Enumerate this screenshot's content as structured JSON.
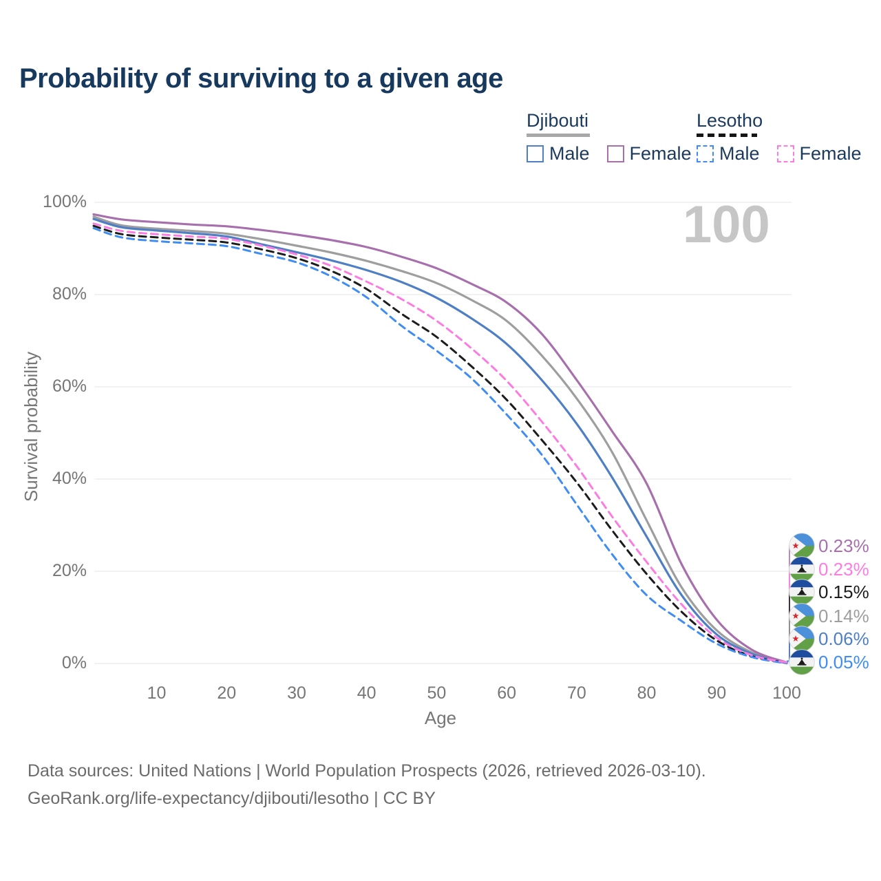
{
  "title": "Probability of surviving to a given age",
  "legend": {
    "groups": [
      {
        "title": "Djibouti",
        "line_style": "solid",
        "underline_color": "#a8a8a8",
        "items": [
          {
            "label": "Male",
            "color": "#4e7fc4"
          },
          {
            "label": "Female",
            "color": "#a770ad"
          }
        ]
      },
      {
        "title": "Lesotho",
        "line_style": "dashed",
        "underline_color": "#161616",
        "items": [
          {
            "label": "Male",
            "color": "#3f8df2"
          },
          {
            "label": "Female",
            "color": "#fb7de2"
          }
        ]
      }
    ]
  },
  "chart_data": {
    "type": "line",
    "title": "Probability of surviving to a given age",
    "xlabel": "Age",
    "ylabel": "Survival probability",
    "xlim": [
      1,
      100
    ],
    "ylim": [
      0,
      100
    ],
    "grid": true,
    "legend_position": "top-right",
    "age_indicator": "100",
    "x": [
      1,
      5,
      10,
      15,
      20,
      25,
      30,
      35,
      40,
      45,
      50,
      55,
      60,
      65,
      70,
      75,
      80,
      85,
      90,
      95,
      100
    ],
    "x_ticks": [
      {
        "v": 10,
        "label": "10"
      },
      {
        "v": 20,
        "label": "20"
      },
      {
        "v": 30,
        "label": "30"
      },
      {
        "v": 40,
        "label": "40"
      },
      {
        "v": 50,
        "label": "50"
      },
      {
        "v": 60,
        "label": "60"
      },
      {
        "v": 70,
        "label": "70"
      },
      {
        "v": 80,
        "label": "80"
      },
      {
        "v": 90,
        "label": "90"
      },
      {
        "v": 100,
        "label": "100"
      }
    ],
    "y_ticks": [
      {
        "v": 0,
        "label": "0%"
      },
      {
        "v": 20,
        "label": "20%"
      },
      {
        "v": 40,
        "label": "40%"
      },
      {
        "v": 60,
        "label": "60%"
      },
      {
        "v": 80,
        "label": "80%"
      },
      {
        "v": 100,
        "label": "100%"
      }
    ],
    "series": [
      {
        "name": "Djibouti Male",
        "country": "djibouti",
        "sex": "male",
        "color": "#4e7fc4",
        "dash": false,
        "values": [
          96.4,
          94.6,
          93.9,
          93.3,
          92.6,
          90.9,
          89.2,
          87.4,
          85.3,
          82.7,
          79.3,
          74.8,
          69.3,
          61.5,
          52.0,
          40.5,
          27.5,
          14.8,
          6.3,
          2.1,
          0.06
        ]
      },
      {
        "name": "Djibouti Female",
        "country": "djibouti",
        "sex": "female",
        "color": "#a770ad",
        "dash": false,
        "values": [
          97.4,
          96.3,
          95.7,
          95.2,
          94.8,
          94.0,
          93.0,
          91.8,
          90.3,
          88.2,
          85.7,
          82.3,
          78.3,
          71.5,
          61.5,
          50.5,
          39.0,
          21.5,
          9.5,
          3.0,
          0.23
        ]
      },
      {
        "name": "Djibouti Both sexes",
        "country": "djibouti",
        "sex": "both",
        "color": "#9e9e9e",
        "dash": false,
        "values": [
          96.9,
          95.0,
          94.3,
          93.8,
          93.2,
          92.0,
          90.6,
          89.1,
          87.3,
          85.1,
          82.5,
          78.8,
          74.3,
          66.8,
          57.5,
          46.0,
          31.0,
          16.5,
          7.2,
          2.4,
          0.14
        ]
      },
      {
        "name": "Lesotho Male",
        "country": "lesotho",
        "sex": "male",
        "color": "#3f8df2",
        "dash": true,
        "values": [
          94.4,
          92.4,
          91.6,
          91.1,
          90.5,
          88.8,
          87.0,
          83.9,
          79.4,
          73.2,
          67.8,
          61.8,
          54.0,
          45.3,
          34.5,
          23.8,
          14.8,
          9.2,
          4.3,
          1.4,
          0.05
        ]
      },
      {
        "name": "Lesotho Female",
        "country": "lesotho",
        "sex": "female",
        "color": "#fb7de2",
        "dash": true,
        "values": [
          95.4,
          93.8,
          93.1,
          92.6,
          92.1,
          90.6,
          88.7,
          86.2,
          82.8,
          79.0,
          74.3,
          68.3,
          61.3,
          52.5,
          42.8,
          32.0,
          22.0,
          12.8,
          5.6,
          1.8,
          0.23
        ]
      },
      {
        "name": "Lesotho Both sexes",
        "country": "lesotho",
        "sex": "both",
        "color": "#1c1c1c",
        "dash": true,
        "values": [
          94.9,
          93.1,
          92.4,
          91.9,
          91.3,
          89.8,
          87.9,
          85.1,
          81.2,
          75.8,
          70.8,
          64.4,
          57.2,
          48.5,
          39.3,
          29.0,
          19.4,
          11.2,
          5.0,
          1.6,
          0.15
        ]
      }
    ],
    "end_labels": [
      {
        "text": "0.23%",
        "country": "djibouti",
        "series": "Djibouti Female",
        "color": "#a770ad"
      },
      {
        "text": "0.23%",
        "country": "lesotho",
        "series": "Lesotho Female",
        "color": "#fb7de2"
      },
      {
        "text": "0.15%",
        "country": "lesotho",
        "series": "Lesotho Both sexes",
        "color": "#1c1c1c"
      },
      {
        "text": "0.14%",
        "country": "djibouti",
        "series": "Djibouti Both sexes",
        "color": "#9e9e9e"
      },
      {
        "text": "0.06%",
        "country": "djibouti",
        "series": "Djibouti Male",
        "color": "#4e7fc4"
      },
      {
        "text": "0.05%",
        "country": "lesotho",
        "series": "Lesotho Male",
        "color": "#3f8df2"
      }
    ]
  },
  "footer": {
    "line1": "Data sources: United Nations | World Population Prospects (2026, retrieved 2026-03-10).",
    "line2": "GeoRank.org/life-expectancy/djibouti/lesotho | CC BY"
  }
}
